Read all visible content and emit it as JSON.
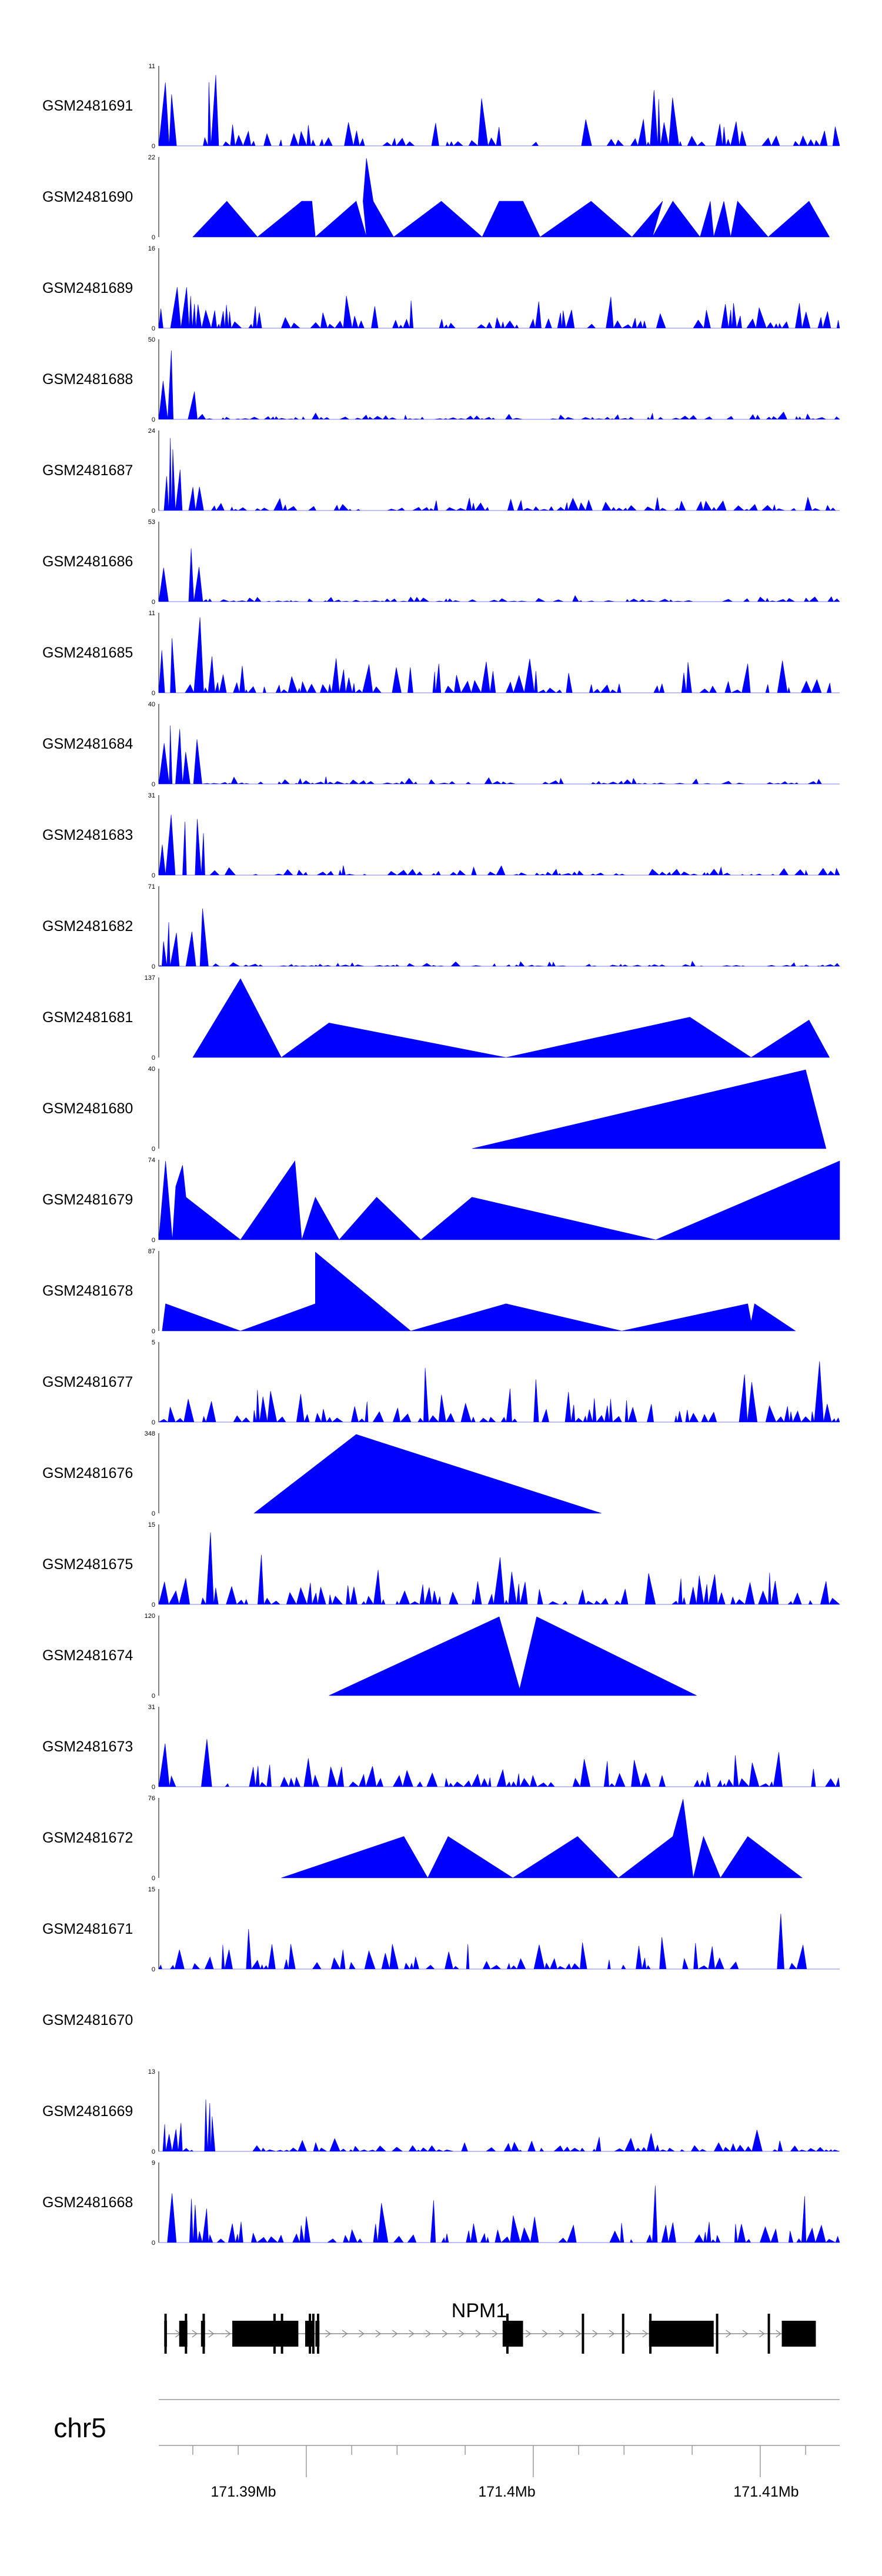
{
  "chart_data": {
    "type": "area",
    "series_color": "#0000ff",
    "x_domain_mb": [
      171.3835,
      171.4135
    ],
    "tracks": [
      {
        "name": "GSM2481691",
        "ymax": "11",
        "ymin": "0",
        "max": 11,
        "style": "dense",
        "seed": 11,
        "peaks": [
          [
            0.01,
            9
          ],
          [
            0.02,
            8
          ],
          [
            0.035,
            6
          ],
          [
            0.06,
            7
          ],
          [
            0.075,
            10
          ],
          [
            0.085,
            11
          ],
          [
            0.4,
            9
          ],
          [
            0.47,
            10
          ],
          [
            0.73,
            10
          ],
          [
            0.755,
            7
          ],
          [
            0.92,
            7
          ]
        ],
        "gaps": [
          [
            0.56,
            0.62
          ]
        ]
      },
      {
        "name": "GSM2481690",
        "ymax": "22",
        "ymin": "0",
        "max": 22,
        "style": "sparse",
        "points": [
          [
            0.05,
            0
          ],
          [
            0.1,
            10
          ],
          [
            0.145,
            0
          ],
          [
            0.21,
            10
          ],
          [
            0.225,
            10
          ],
          [
            0.23,
            0
          ],
          [
            0.29,
            10
          ],
          [
            0.305,
            0
          ],
          [
            0.3,
            10
          ],
          [
            0.305,
            22
          ],
          [
            0.315,
            10
          ],
          [
            0.345,
            0
          ],
          [
            0.415,
            10
          ],
          [
            0.475,
            0
          ],
          [
            0.5,
            10
          ],
          [
            0.535,
            10
          ],
          [
            0.56,
            0
          ],
          [
            0.635,
            10
          ],
          [
            0.695,
            0
          ],
          [
            0.74,
            10
          ],
          [
            0.725,
            0
          ],
          [
            0.755,
            10
          ],
          [
            0.795,
            0
          ],
          [
            0.81,
            10
          ],
          [
            0.815,
            0
          ],
          [
            0.83,
            10
          ],
          [
            0.84,
            0
          ],
          [
            0.85,
            10
          ],
          [
            0.895,
            0
          ],
          [
            0.955,
            10
          ],
          [
            0.985,
            0
          ]
        ]
      },
      {
        "name": "GSM2481689",
        "ymax": "16",
        "ymin": "0",
        "max": 16,
        "style": "dense",
        "seed": 89,
        "peaks": [
          [
            0.015,
            12
          ],
          [
            0.02,
            16
          ],
          [
            0.03,
            11
          ],
          [
            0.04,
            9
          ],
          [
            0.05,
            6
          ],
          [
            0.075,
            4
          ],
          [
            0.1,
            5
          ],
          [
            0.72,
            5
          ],
          [
            0.81,
            7
          ],
          [
            0.83,
            6
          ],
          [
            0.86,
            5
          ]
        ]
      },
      {
        "name": "GSM2481688",
        "ymax": "50",
        "ymin": "0",
        "max": 50,
        "style": "dense",
        "seed": 88,
        "peaks": [
          [
            0.01,
            35
          ],
          [
            0.02,
            50
          ],
          [
            0.03,
            30
          ],
          [
            0.04,
            22
          ],
          [
            0.05,
            22
          ],
          [
            0.055,
            18
          ]
        ],
        "bg": 0.06
      },
      {
        "name": "GSM2481687",
        "ymax": "24",
        "ymin": "0",
        "max": 24,
        "style": "dense",
        "seed": 87,
        "peaks": [
          [
            0.01,
            12
          ],
          [
            0.018,
            24
          ],
          [
            0.026,
            20
          ],
          [
            0.035,
            18
          ],
          [
            0.045,
            10
          ],
          [
            0.055,
            12
          ],
          [
            0.7,
            6
          ],
          [
            0.73,
            5
          ],
          [
            0.8,
            4
          ]
        ],
        "bg": 0.12
      },
      {
        "name": "GSM2481686",
        "ymax": "53",
        "ymin": "0",
        "max": 53,
        "style": "dense",
        "seed": 86,
        "peaks": [
          [
            0.01,
            30
          ],
          [
            0.02,
            53
          ],
          [
            0.03,
            35
          ],
          [
            0.04,
            33
          ],
          [
            0.05,
            45
          ],
          [
            0.06,
            25
          ]
        ],
        "bg": 0.05
      },
      {
        "name": "GSM2481685",
        "ymax": "11",
        "ymin": "0",
        "max": 11,
        "style": "dense",
        "seed": 85,
        "peaks": [
          [
            0.01,
            11
          ],
          [
            0.02,
            8
          ],
          [
            0.04,
            9
          ],
          [
            0.06,
            11
          ],
          [
            0.08,
            6
          ],
          [
            0.19,
            4
          ],
          [
            0.35,
            3
          ],
          [
            0.83,
            6
          ],
          [
            0.87,
            7
          ]
        ]
      },
      {
        "name": "GSM2481684",
        "ymax": "40",
        "ymin": "0",
        "max": 40,
        "style": "dense",
        "seed": 84,
        "peaks": [
          [
            0.01,
            25
          ],
          [
            0.02,
            40
          ],
          [
            0.03,
            30
          ],
          [
            0.045,
            30
          ],
          [
            0.055,
            25
          ],
          [
            0.065,
            18
          ]
        ],
        "bg": 0.06
      },
      {
        "name": "GSM2481683",
        "ymax": "31",
        "ymin": "0",
        "max": 31,
        "style": "dense",
        "seed": 83,
        "peaks": [
          [
            0.01,
            20
          ],
          [
            0.02,
            28
          ],
          [
            0.03,
            22
          ],
          [
            0.04,
            24
          ],
          [
            0.05,
            30
          ],
          [
            0.06,
            31
          ],
          [
            0.07,
            15
          ],
          [
            0.5,
            5
          ]
        ],
        "bg": 0.08
      },
      {
        "name": "GSM2481682",
        "ymax": "71",
        "ymin": "0",
        "max": 71,
        "style": "dense",
        "seed": 82,
        "peaks": [
          [
            0.01,
            30
          ],
          [
            0.02,
            71
          ],
          [
            0.03,
            45
          ],
          [
            0.045,
            45
          ],
          [
            0.055,
            60
          ],
          [
            0.065,
            55
          ],
          [
            0.075,
            30
          ]
        ],
        "bg": 0.04
      },
      {
        "name": "GSM2481681",
        "ymax": "137",
        "ymin": "0",
        "max": 137,
        "style": "sparse",
        "points": [
          [
            0.05,
            0
          ],
          [
            0.12,
            137
          ],
          [
            0.18,
            0
          ],
          [
            0.25,
            60
          ],
          [
            0.51,
            0
          ],
          [
            0.78,
            70
          ],
          [
            0.87,
            0
          ],
          [
            0.955,
            65
          ],
          [
            0.985,
            0
          ]
        ]
      },
      {
        "name": "GSM2481680",
        "ymax": "40",
        "ymin": "0",
        "max": 40,
        "style": "sparse",
        "points": [
          [
            0.46,
            0
          ],
          [
            0.95,
            40
          ],
          [
            0.98,
            0
          ]
        ]
      },
      {
        "name": "GSM2481679",
        "ymax": "74",
        "ymin": "0",
        "max": 74,
        "style": "sparse",
        "points": [
          [
            0.0,
            0
          ],
          [
            0.01,
            74
          ],
          [
            0.02,
            0
          ],
          [
            0.025,
            50
          ],
          [
            0.035,
            70
          ],
          [
            0.04,
            40
          ],
          [
            0.12,
            0
          ],
          [
            0.2,
            74
          ],
          [
            0.21,
            0
          ],
          [
            0.23,
            40
          ],
          [
            0.265,
            0
          ],
          [
            0.32,
            40
          ],
          [
            0.385,
            0
          ],
          [
            0.46,
            40
          ],
          [
            0.73,
            0
          ],
          [
            1.0,
            74
          ],
          [
            1.0,
            0
          ]
        ]
      },
      {
        "name": "GSM2481678",
        "ymax": "87",
        "ymin": "0",
        "max": 87,
        "style": "sparse",
        "points": [
          [
            0.005,
            0
          ],
          [
            0.01,
            30
          ],
          [
            0.12,
            0
          ],
          [
            0.23,
            30
          ],
          [
            0.23,
            87
          ],
          [
            0.37,
            0
          ],
          [
            0.51,
            30
          ],
          [
            0.68,
            0
          ],
          [
            0.865,
            30
          ],
          [
            0.87,
            10
          ],
          [
            0.875,
            30
          ],
          [
            0.935,
            0
          ]
        ]
      },
      {
        "name": "GSM2481677",
        "ymax": "5",
        "ymin": "0",
        "max": 5,
        "style": "dense",
        "seed": 77,
        "peaks": [
          [
            0.16,
            3
          ],
          [
            0.2,
            4
          ],
          [
            0.33,
            5
          ],
          [
            0.395,
            5
          ],
          [
            0.55,
            4
          ],
          [
            0.865,
            5
          ],
          [
            0.97,
            4
          ]
        ]
      },
      {
        "name": "GSM2481676",
        "ymax": "348",
        "ymin": "0",
        "max": 348,
        "style": "sparse",
        "points": [
          [
            0.14,
            0
          ],
          [
            0.29,
            348
          ],
          [
            0.65,
            0
          ]
        ]
      },
      {
        "name": "GSM2481675",
        "ymax": "15",
        "ymin": "0",
        "max": 15,
        "style": "dense",
        "seed": 75,
        "peaks": [
          [
            0.075,
            15
          ],
          [
            0.15,
            10
          ],
          [
            0.27,
            8
          ],
          [
            0.32,
            8
          ],
          [
            0.425,
            10
          ],
          [
            0.5,
            10
          ],
          [
            0.82,
            8
          ],
          [
            0.9,
            8
          ]
        ],
        "gaps": [
          [
            0.69,
            0.72
          ]
        ]
      },
      {
        "name": "GSM2481674",
        "ymax": "120",
        "ymin": "0",
        "max": 120,
        "style": "sparse",
        "points": [
          [
            0.25,
            0
          ],
          [
            0.5,
            120
          ],
          [
            0.53,
            10
          ],
          [
            0.555,
            120
          ],
          [
            0.79,
            0
          ]
        ]
      },
      {
        "name": "GSM2481673",
        "ymax": "31",
        "ymin": "0",
        "max": 31,
        "style": "dense",
        "seed": 73,
        "peaks": [
          [
            0.01,
            18
          ],
          [
            0.03,
            15
          ],
          [
            0.06,
            31
          ],
          [
            0.07,
            20
          ],
          [
            0.25,
            10
          ],
          [
            0.41,
            8
          ],
          [
            0.96,
            8
          ]
        ]
      },
      {
        "name": "GSM2481672",
        "ymax": "76",
        "ymin": "0",
        "max": 76,
        "style": "sparse",
        "points": [
          [
            0.18,
            0
          ],
          [
            0.36,
            40
          ],
          [
            0.395,
            0
          ],
          [
            0.425,
            40
          ],
          [
            0.52,
            0
          ],
          [
            0.615,
            40
          ],
          [
            0.675,
            0
          ],
          [
            0.755,
            40
          ],
          [
            0.77,
            76
          ],
          [
            0.785,
            0
          ],
          [
            0.8,
            40
          ],
          [
            0.825,
            0
          ],
          [
            0.865,
            40
          ],
          [
            0.945,
            0
          ]
        ]
      },
      {
        "name": "GSM2481671",
        "ymax": "15",
        "ymin": "0",
        "max": 15,
        "style": "dense",
        "seed": 71,
        "peaks": [
          [
            0.035,
            6
          ],
          [
            0.13,
            9
          ],
          [
            0.745,
            9
          ],
          [
            0.91,
            15
          ],
          [
            0.95,
            5
          ]
        ],
        "gaps": [
          [
            0.21,
            0.23
          ],
          [
            0.63,
            0.66
          ],
          [
            0.97,
            1.0
          ]
        ]
      },
      {
        "name": "GSM2481670",
        "ymax": "",
        "ymin": "",
        "max": 1,
        "style": "empty"
      },
      {
        "name": "GSM2481669",
        "ymax": "13",
        "ymin": "0",
        "max": 13,
        "style": "dense",
        "seed": 69,
        "peaks": [
          [
            0.01,
            5
          ],
          [
            0.03,
            6
          ],
          [
            0.055,
            10
          ],
          [
            0.065,
            13
          ],
          [
            0.075,
            8
          ],
          [
            0.72,
            4
          ],
          [
            0.88,
            4
          ]
        ],
        "bg": 0.12
      },
      {
        "name": "GSM2481668",
        "ymax": "9",
        "ymin": "0",
        "max": 9,
        "style": "dense",
        "seed": 68,
        "peaks": [
          [
            0.01,
            9
          ],
          [
            0.015,
            9
          ],
          [
            0.03,
            7
          ],
          [
            0.05,
            6
          ],
          [
            0.33,
            6
          ],
          [
            0.4,
            7
          ],
          [
            0.71,
            9
          ],
          [
            0.73,
            7
          ],
          [
            0.84,
            7
          ],
          [
            0.95,
            6
          ]
        ],
        "gaps": [
          [
            0.61,
            0.64
          ]
        ]
      }
    ],
    "gene": {
      "name": "NPM1",
      "strand": "+",
      "exons": [
        [
          0.008,
          0.012
        ],
        [
          0.03,
          0.042
        ],
        [
          0.062,
          0.068
        ],
        [
          0.108,
          0.205
        ],
        [
          0.215,
          0.227
        ],
        [
          0.23,
          0.236
        ],
        [
          0.505,
          0.535
        ],
        [
          0.72,
          0.815
        ],
        [
          0.915,
          0.965
        ]
      ],
      "markers": [
        0.01,
        0.04,
        0.066,
        0.17,
        0.181,
        0.222,
        0.227,
        0.234,
        0.512,
        0.623,
        0.682,
        0.722,
        0.82,
        0.896
      ]
    },
    "axis": {
      "chromosome": "chr5",
      "tick_labels": [
        "171.39Mb",
        "171.4Mb",
        "171.41Mb"
      ],
      "labeled_ticks_mb": [
        171.39,
        171.4,
        171.41
      ],
      "minor_ticks_mb": [
        171.385,
        171.387,
        171.392,
        171.394,
        171.397,
        171.402,
        171.404,
        171.407,
        171.412
      ]
    }
  }
}
